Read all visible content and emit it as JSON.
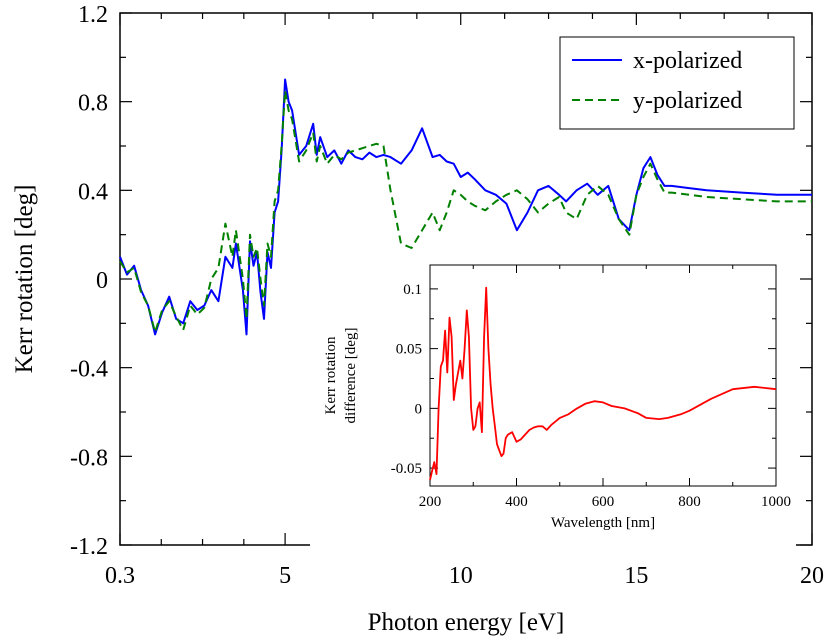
{
  "chart_data": [
    {
      "type": "line",
      "title": "",
      "xlabel": "Photon energy [eV]",
      "ylabel": "Kerr rotation [deg]",
      "xlim": [
        0.3,
        20
      ],
      "ylim": [
        -1.2,
        1.2
      ],
      "x_ticks": [
        0.3,
        5,
        10,
        15,
        20
      ],
      "x_tick_labels": [
        "0.3",
        "5",
        "10",
        "15",
        "20"
      ],
      "y_ticks": [
        -1.2,
        -0.8,
        -0.4,
        0,
        0.4,
        0.8,
        1.2
      ],
      "y_tick_labels": [
        "-1.2",
        "-0.8",
        "-0.4",
        "0",
        "0.4",
        "0.8",
        "1.2"
      ],
      "legend_position": "top-right",
      "series": [
        {
          "name": "x-polarized",
          "color": "#0000ff",
          "dash": "solid",
          "x": [
            0.3,
            0.5,
            0.7,
            0.9,
            1.1,
            1.3,
            1.5,
            1.7,
            1.9,
            2.1,
            2.3,
            2.5,
            2.7,
            2.9,
            3.1,
            3.3,
            3.5,
            3.6,
            3.8,
            3.9,
            4.0,
            4.1,
            4.2,
            4.3,
            4.4,
            4.5,
            4.6,
            4.7,
            4.8,
            4.9,
            5.0,
            5.1,
            5.2,
            5.4,
            5.6,
            5.8,
            5.9,
            6.0,
            6.2,
            6.4,
            6.6,
            6.8,
            7.0,
            7.2,
            7.4,
            7.6,
            7.8,
            8.0,
            8.3,
            8.6,
            8.9,
            9.2,
            9.4,
            9.6,
            9.8,
            10.0,
            10.2,
            10.4,
            10.7,
            11.0,
            11.3,
            11.6,
            11.9,
            12.2,
            12.5,
            12.8,
            13.0,
            13.3,
            13.6,
            13.9,
            14.2,
            14.5,
            14.8,
            15.0,
            15.2,
            15.4,
            15.6,
            15.8,
            16.0,
            16.5,
            17.0,
            18.0,
            19.0,
            20.0
          ],
          "values": [
            0.1,
            0.02,
            0.06,
            -0.05,
            -0.12,
            -0.25,
            -0.15,
            -0.08,
            -0.18,
            -0.2,
            -0.1,
            -0.14,
            -0.12,
            -0.05,
            -0.1,
            0.1,
            0.05,
            0.16,
            -0.05,
            -0.25,
            0.17,
            0.06,
            0.12,
            -0.06,
            -0.18,
            0.12,
            0.05,
            0.3,
            0.35,
            0.58,
            0.9,
            0.8,
            0.76,
            0.56,
            0.6,
            0.7,
            0.56,
            0.64,
            0.55,
            0.58,
            0.52,
            0.58,
            0.55,
            0.54,
            0.57,
            0.55,
            0.56,
            0.55,
            0.52,
            0.58,
            0.68,
            0.55,
            0.56,
            0.53,
            0.52,
            0.46,
            0.48,
            0.45,
            0.4,
            0.38,
            0.34,
            0.22,
            0.3,
            0.4,
            0.42,
            0.38,
            0.35,
            0.4,
            0.43,
            0.38,
            0.42,
            0.27,
            0.22,
            0.38,
            0.5,
            0.55,
            0.47,
            0.42,
            0.42,
            0.41,
            0.4,
            0.39,
            0.38,
            0.38
          ]
        },
        {
          "name": "y-polarized",
          "color": "#008000",
          "dash": "dashed",
          "x": [
            0.3,
            0.5,
            0.7,
            0.9,
            1.1,
            1.3,
            1.5,
            1.7,
            1.9,
            2.1,
            2.3,
            2.5,
            2.7,
            2.9,
            3.1,
            3.3,
            3.5,
            3.6,
            3.8,
            3.9,
            4.0,
            4.1,
            4.2,
            4.3,
            4.4,
            4.5,
            4.6,
            4.7,
            4.8,
            4.9,
            5.0,
            5.1,
            5.2,
            5.4,
            5.6,
            5.8,
            5.9,
            6.0,
            6.2,
            6.4,
            6.6,
            6.8,
            7.0,
            7.2,
            7.4,
            7.6,
            7.8,
            8.0,
            8.3,
            8.6,
            8.9,
            9.2,
            9.4,
            9.6,
            9.8,
            10.0,
            10.2,
            10.4,
            10.7,
            11.0,
            11.3,
            11.6,
            11.9,
            12.2,
            12.5,
            12.8,
            13.0,
            13.3,
            13.6,
            13.9,
            14.2,
            14.5,
            14.8,
            15.0,
            15.2,
            15.4,
            15.6,
            15.8,
            16.0,
            16.5,
            17.0,
            18.0,
            19.0,
            20.0
          ],
          "values": [
            0.08,
            0.03,
            0.05,
            -0.06,
            -0.12,
            -0.24,
            -0.14,
            -0.1,
            -0.17,
            -0.23,
            -0.12,
            -0.16,
            -0.13,
            0.0,
            0.05,
            0.25,
            0.1,
            0.22,
            0.0,
            -0.18,
            0.2,
            0.1,
            0.14,
            0.0,
            -0.12,
            0.16,
            0.1,
            0.35,
            0.4,
            0.6,
            0.85,
            0.76,
            0.72,
            0.53,
            0.58,
            0.66,
            0.53,
            0.6,
            0.52,
            0.56,
            0.54,
            0.57,
            0.58,
            0.59,
            0.6,
            0.61,
            0.6,
            0.4,
            0.16,
            0.14,
            0.22,
            0.3,
            0.22,
            0.3,
            0.4,
            0.38,
            0.35,
            0.33,
            0.31,
            0.35,
            0.38,
            0.4,
            0.36,
            0.3,
            0.34,
            0.37,
            0.3,
            0.27,
            0.38,
            0.42,
            0.38,
            0.27,
            0.2,
            0.38,
            0.46,
            0.52,
            0.45,
            0.39,
            0.39,
            0.38,
            0.37,
            0.36,
            0.35,
            0.35
          ]
        }
      ]
    },
    {
      "type": "line",
      "title": "",
      "xlabel": "Wavelength [nm]",
      "ylabel_line1": "Kerr rotation",
      "ylabel_line2": "difference [deg]",
      "xlim": [
        200,
        1000
      ],
      "ylim": [
        -0.065,
        0.12
      ],
      "x_ticks": [
        200,
        400,
        600,
        800,
        1000
      ],
      "x_tick_labels": [
        "200",
        "400",
        "600",
        "800",
        "1000"
      ],
      "y_ticks": [
        -0.05,
        0,
        0.05,
        0.1
      ],
      "y_tick_labels": [
        "-0.05",
        "0",
        "0.05",
        "0.1"
      ],
      "series": [
        {
          "name": "difference",
          "color": "#ff0000",
          "x": [
            200,
            205,
            210,
            215,
            220,
            225,
            230,
            235,
            240,
            245,
            250,
            255,
            260,
            265,
            270,
            275,
            280,
            285,
            290,
            295,
            300,
            305,
            310,
            315,
            320,
            325,
            330,
            335,
            340,
            345,
            350,
            355,
            360,
            365,
            370,
            375,
            380,
            390,
            400,
            410,
            420,
            430,
            440,
            450,
            460,
            470,
            480,
            500,
            520,
            540,
            560,
            580,
            600,
            620,
            650,
            680,
            700,
            730,
            750,
            780,
            800,
            850,
            900,
            950,
            1000
          ],
          "values": [
            -0.06,
            -0.052,
            -0.045,
            -0.055,
            0.0,
            0.035,
            0.04,
            0.065,
            0.03,
            0.076,
            0.06,
            0.007,
            0.02,
            0.03,
            0.04,
            0.025,
            0.05,
            0.082,
            0.06,
            0.0,
            -0.018,
            -0.015,
            0.0,
            0.005,
            -0.02,
            0.06,
            0.101,
            0.05,
            0.02,
            0.0,
            -0.015,
            -0.03,
            -0.035,
            -0.04,
            -0.038,
            -0.025,
            -0.022,
            -0.02,
            -0.028,
            -0.026,
            -0.022,
            -0.018,
            -0.016,
            -0.015,
            -0.015,
            -0.018,
            -0.014,
            -0.008,
            -0.005,
            0.0,
            0.004,
            0.006,
            0.005,
            0.002,
            0.0,
            -0.004,
            -0.008,
            -0.009,
            -0.008,
            -0.005,
            -0.002,
            0.008,
            0.016,
            0.018,
            0.016
          ]
        }
      ]
    }
  ]
}
